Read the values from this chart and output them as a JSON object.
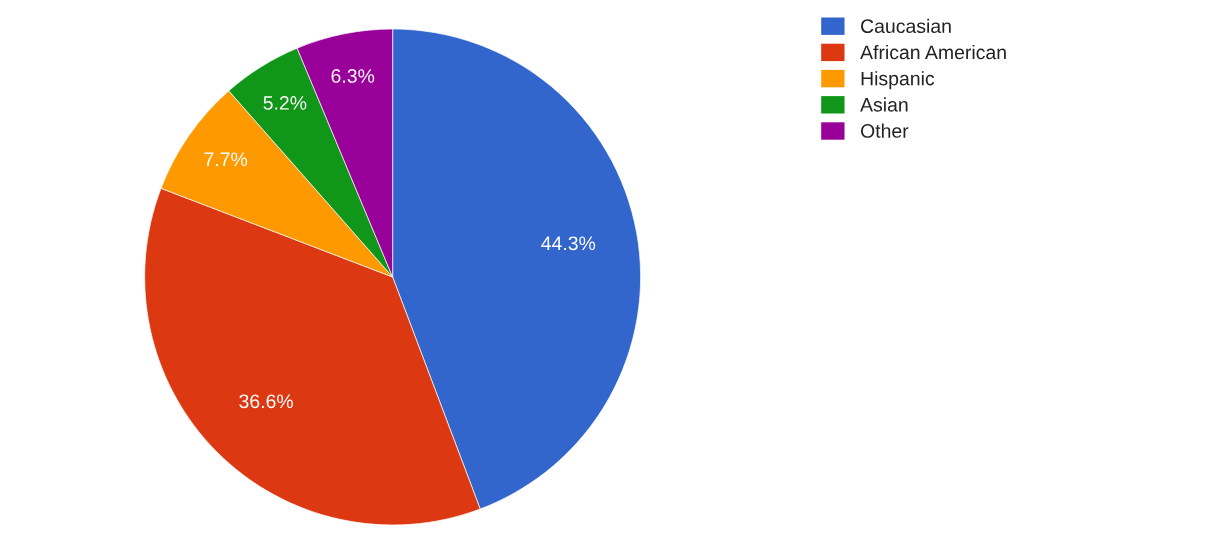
{
  "chart_data": {
    "type": "pie",
    "categories": [
      "Caucasian",
      "African American",
      "Hispanic",
      "Asian",
      "Other"
    ],
    "values": [
      44.3,
      36.6,
      7.7,
      5.2,
      6.3
    ],
    "colors": [
      "#3366cc",
      "#dc3912",
      "#ff9900",
      "#109618",
      "#990099"
    ],
    "value_labels": [
      "44.3%",
      "36.6%",
      "7.7%",
      "5.2%",
      "6.3%"
    ],
    "legend": "top right"
  }
}
